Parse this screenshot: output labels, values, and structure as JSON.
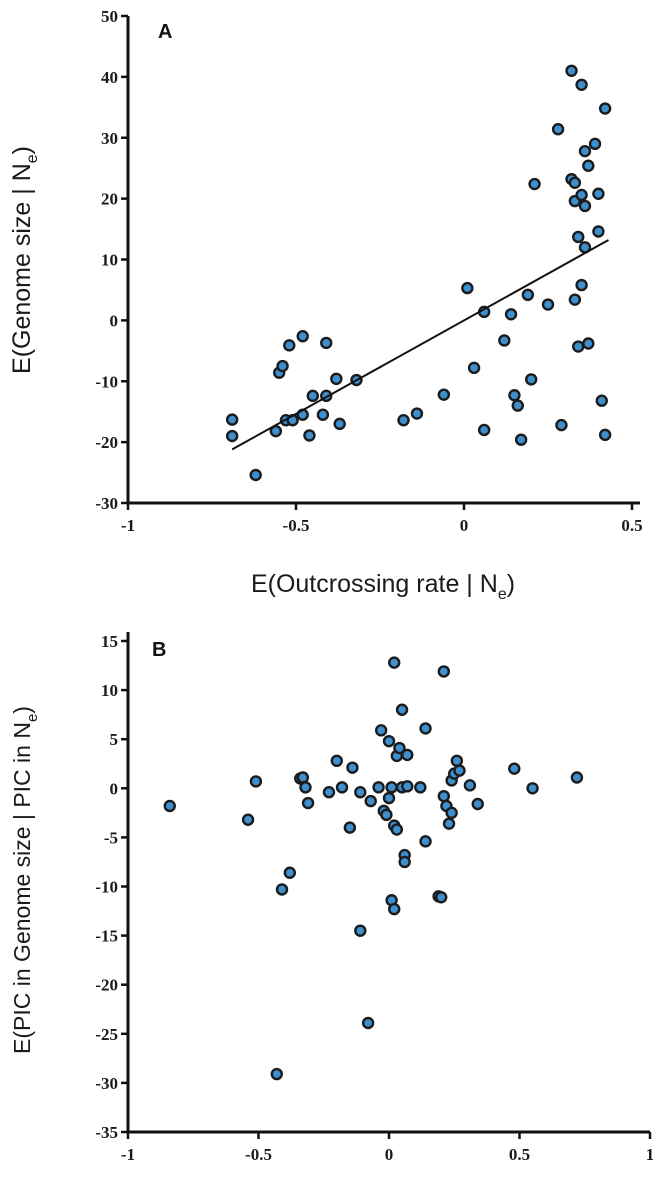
{
  "chart_data": [
    {
      "type": "scatter",
      "panel_label": "A",
      "xlabel_main": "E(Outcrossing rate | N",
      "xlabel_sub": "e",
      "xlabel_end": ")",
      "ylabel_main": "E(Genome size | N",
      "ylabel_sub": "e",
      "ylabel_end": ")",
      "xlim": [
        -1,
        0.5
      ],
      "ylim": [
        -30,
        50
      ],
      "xticks": [
        -1,
        -0.5,
        0,
        0.5
      ],
      "xtick_labels": [
        "-1",
        "-0.5",
        "0",
        "0.5"
      ],
      "yticks": [
        -30,
        -20,
        -10,
        0,
        10,
        20,
        30,
        40,
        50
      ],
      "ytick_labels": [
        "-30",
        "-20",
        "-10",
        "0",
        "10",
        "20",
        "30",
        "40",
        "50"
      ],
      "marker_color": "#3d8fce",
      "marker_edge": "#1b1b1b",
      "trendline": {
        "x": [
          -0.69,
          0.43
        ],
        "y": [
          -21.2,
          13.2
        ]
      },
      "points": [
        {
          "x": -0.69,
          "y": -16.3
        },
        {
          "x": -0.69,
          "y": -19.0
        },
        {
          "x": -0.62,
          "y": -25.4
        },
        {
          "x": -0.56,
          "y": -18.2
        },
        {
          "x": -0.55,
          "y": -8.6
        },
        {
          "x": -0.54,
          "y": -7.5
        },
        {
          "x": -0.53,
          "y": -16.4
        },
        {
          "x": -0.52,
          "y": -4.1
        },
        {
          "x": -0.51,
          "y": -16.4
        },
        {
          "x": -0.48,
          "y": -15.5
        },
        {
          "x": -0.48,
          "y": -2.6
        },
        {
          "x": -0.46,
          "y": -18.9
        },
        {
          "x": -0.45,
          "y": -12.4
        },
        {
          "x": -0.42,
          "y": -15.5
        },
        {
          "x": -0.41,
          "y": -3.7
        },
        {
          "x": -0.41,
          "y": -12.4
        },
        {
          "x": -0.38,
          "y": -9.6
        },
        {
          "x": -0.37,
          "y": -17.0
        },
        {
          "x": -0.32,
          "y": -9.8
        },
        {
          "x": -0.18,
          "y": -16.4
        },
        {
          "x": -0.14,
          "y": -15.3
        },
        {
          "x": -0.06,
          "y": -12.2
        },
        {
          "x": 0.01,
          "y": 5.3
        },
        {
          "x": 0.03,
          "y": -7.8
        },
        {
          "x": 0.06,
          "y": 1.4
        },
        {
          "x": 0.06,
          "y": -18.0
        },
        {
          "x": 0.12,
          "y": -3.3
        },
        {
          "x": 0.14,
          "y": 1.0
        },
        {
          "x": 0.15,
          "y": -12.3
        },
        {
          "x": 0.17,
          "y": -19.6
        },
        {
          "x": 0.19,
          "y": 4.2
        },
        {
          "x": 0.2,
          "y": -9.7
        },
        {
          "x": 0.21,
          "y": 22.4
        },
        {
          "x": 0.25,
          "y": 2.6
        },
        {
          "x": 0.28,
          "y": 31.4
        },
        {
          "x": 0.29,
          "y": -17.2
        },
        {
          "x": 0.32,
          "y": 41.0
        },
        {
          "x": 0.32,
          "y": 23.2
        },
        {
          "x": 0.33,
          "y": 22.6
        },
        {
          "x": 0.33,
          "y": 19.6
        },
        {
          "x": 0.33,
          "y": 3.4
        },
        {
          "x": 0.34,
          "y": 13.7
        },
        {
          "x": 0.34,
          "y": -4.3
        },
        {
          "x": 0.35,
          "y": 38.7
        },
        {
          "x": 0.35,
          "y": 5.8
        },
        {
          "x": 0.35,
          "y": 20.6
        },
        {
          "x": 0.36,
          "y": 27.8
        },
        {
          "x": 0.36,
          "y": 18.8
        },
        {
          "x": 0.36,
          "y": 12.0
        },
        {
          "x": 0.37,
          "y": 25.4
        },
        {
          "x": 0.37,
          "y": -3.8
        },
        {
          "x": 0.39,
          "y": 29.0
        },
        {
          "x": 0.4,
          "y": 20.8
        },
        {
          "x": 0.4,
          "y": 14.6
        },
        {
          "x": 0.41,
          "y": -13.2
        },
        {
          "x": 0.42,
          "y": 34.8
        },
        {
          "x": 0.42,
          "y": -18.8
        },
        {
          "x": 0.16,
          "y": -14.0
        }
      ]
    },
    {
      "type": "scatter",
      "panel_label": "B",
      "ylabel_main": "E(PIC in Genome size | PIC in N",
      "ylabel_sub": "e",
      "ylabel_end": ")",
      "xlim": [
        -1,
        1
      ],
      "ylim": [
        -35,
        15
      ],
      "xticks": [
        -1,
        -0.5,
        0,
        0.5,
        1
      ],
      "xtick_labels": [
        "-1",
        "-0.5",
        "0",
        "0.5",
        "1"
      ],
      "yticks": [
        -35,
        -30,
        -25,
        -20,
        -15,
        -10,
        -5,
        0,
        5,
        10,
        15
      ],
      "ytick_labels": [
        "-35",
        "-30",
        "-25",
        "-20",
        "-15",
        "-10",
        "-5",
        "0",
        "5",
        "10",
        "15"
      ],
      "marker_color": "#3d8fce",
      "marker_edge": "#1b1b1b",
      "points": [
        {
          "x": -0.84,
          "y": -1.8
        },
        {
          "x": -0.54,
          "y": -3.2
        },
        {
          "x": -0.51,
          "y": 0.7
        },
        {
          "x": -0.43,
          "y": -29.1
        },
        {
          "x": -0.41,
          "y": -10.3
        },
        {
          "x": -0.38,
          "y": -8.6
        },
        {
          "x": -0.34,
          "y": 1.0
        },
        {
          "x": -0.33,
          "y": 1.1
        },
        {
          "x": -0.32,
          "y": 0.1
        },
        {
          "x": -0.31,
          "y": -1.5
        },
        {
          "x": -0.23,
          "y": -0.4
        },
        {
          "x": -0.2,
          "y": 2.8
        },
        {
          "x": -0.18,
          "y": 0.1
        },
        {
          "x": -0.15,
          "y": -4.0
        },
        {
          "x": -0.14,
          "y": 2.1
        },
        {
          "x": -0.11,
          "y": -14.5
        },
        {
          "x": -0.11,
          "y": -0.4
        },
        {
          "x": -0.08,
          "y": -23.9
        },
        {
          "x": -0.07,
          "y": -1.3
        },
        {
          "x": -0.04,
          "y": 0.1
        },
        {
          "x": -0.03,
          "y": 5.9
        },
        {
          "x": -0.02,
          "y": -2.3
        },
        {
          "x": -0.01,
          "y": -2.7
        },
        {
          "x": 0.0,
          "y": 4.8
        },
        {
          "x": 0.0,
          "y": -1.0
        },
        {
          "x": 0.01,
          "y": -11.4
        },
        {
          "x": 0.01,
          "y": 0.1
        },
        {
          "x": 0.02,
          "y": 12.8
        },
        {
          "x": 0.02,
          "y": -3.8
        },
        {
          "x": 0.02,
          "y": -12.3
        },
        {
          "x": 0.03,
          "y": 3.3
        },
        {
          "x": 0.03,
          "y": -4.2
        },
        {
          "x": 0.04,
          "y": 4.1
        },
        {
          "x": 0.05,
          "y": 8.0
        },
        {
          "x": 0.05,
          "y": 0.1
        },
        {
          "x": 0.06,
          "y": -6.8
        },
        {
          "x": 0.06,
          "y": -7.5
        },
        {
          "x": 0.07,
          "y": 3.4
        },
        {
          "x": 0.07,
          "y": 0.2
        },
        {
          "x": 0.12,
          "y": 0.1
        },
        {
          "x": 0.14,
          "y": 6.1
        },
        {
          "x": 0.14,
          "y": -5.4
        },
        {
          "x": 0.19,
          "y": -11.0
        },
        {
          "x": 0.2,
          "y": -11.1
        },
        {
          "x": 0.21,
          "y": 11.9
        },
        {
          "x": 0.21,
          "y": -0.8
        },
        {
          "x": 0.22,
          "y": -1.8
        },
        {
          "x": 0.23,
          "y": -3.6
        },
        {
          "x": 0.24,
          "y": 0.8
        },
        {
          "x": 0.24,
          "y": -2.5
        },
        {
          "x": 0.25,
          "y": 1.5
        },
        {
          "x": 0.26,
          "y": 2.8
        },
        {
          "x": 0.27,
          "y": 1.8
        },
        {
          "x": 0.31,
          "y": 0.3
        },
        {
          "x": 0.34,
          "y": -1.6
        },
        {
          "x": 0.48,
          "y": 2.0
        },
        {
          "x": 0.55,
          "y": 0.0
        },
        {
          "x": 0.72,
          "y": 1.1
        }
      ]
    }
  ]
}
